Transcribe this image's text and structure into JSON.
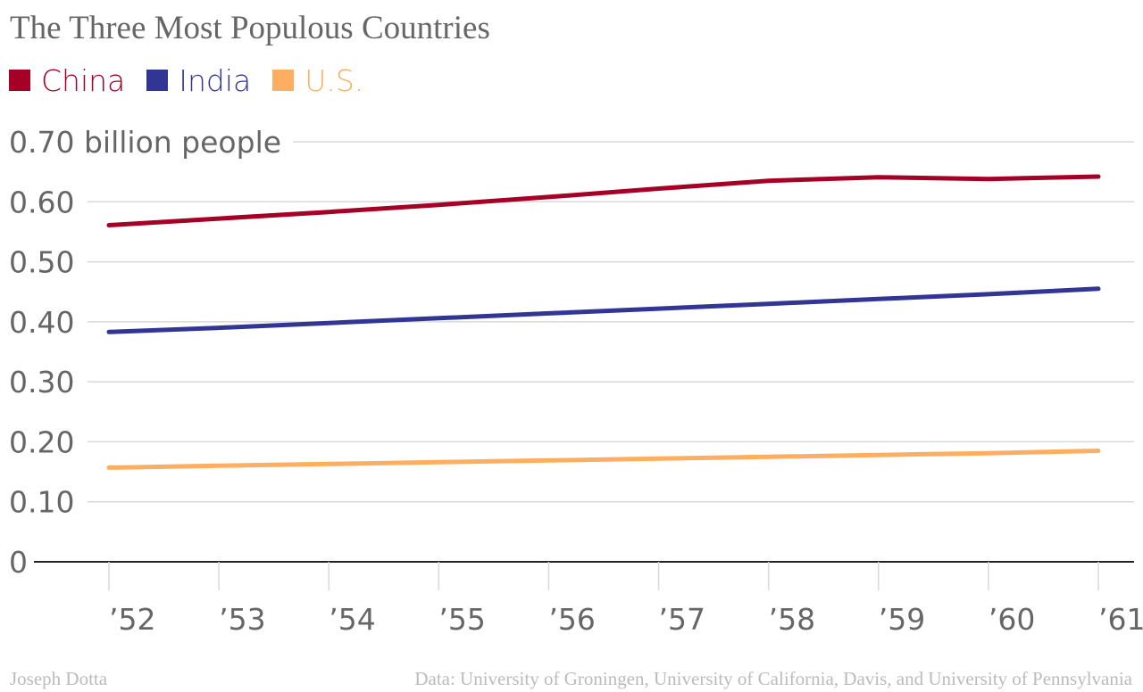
{
  "title": "The Three Most Populous Countries",
  "credit": "Joseph Dotta",
  "source": "Data: University of Groningen, University of California, Davis, and University of Pennsylvania",
  "chart_data": {
    "type": "line",
    "title": "The Three Most Populous Countries",
    "x": [
      1952,
      1953,
      1954,
      1955,
      1956,
      1957,
      1958,
      1959,
      1960,
      1961
    ],
    "x_tick_labels": [
      "’52",
      "’53",
      "’54",
      "’55",
      "’56",
      "’57",
      "’58",
      "’59",
      "’60",
      "’61"
    ],
    "y_tick_values": [
      0,
      0.1,
      0.2,
      0.3,
      0.4,
      0.5,
      0.6,
      0.7
    ],
    "y_tick_labels": [
      "0",
      "0.10",
      "0.20",
      "0.30",
      "0.40",
      "0.50",
      "0.60",
      "0.70 billion people"
    ],
    "ylim": [
      0,
      0.7
    ],
    "grid": true,
    "legend_position": "top-left",
    "series": [
      {
        "name": "China",
        "color": "#a50026",
        "values": [
          0.561,
          0.572,
          0.583,
          0.595,
          0.608,
          0.622,
          0.635,
          0.641,
          0.638,
          0.642
        ]
      },
      {
        "name": "India",
        "color": "#313695",
        "values": [
          0.383,
          0.39,
          0.398,
          0.406,
          0.414,
          0.422,
          0.43,
          0.438,
          0.446,
          0.455
        ]
      },
      {
        "name": "U.S.",
        "color": "#fdae61",
        "values": [
          0.157,
          0.16,
          0.163,
          0.166,
          0.169,
          0.172,
          0.175,
          0.178,
          0.181,
          0.185
        ]
      }
    ]
  }
}
